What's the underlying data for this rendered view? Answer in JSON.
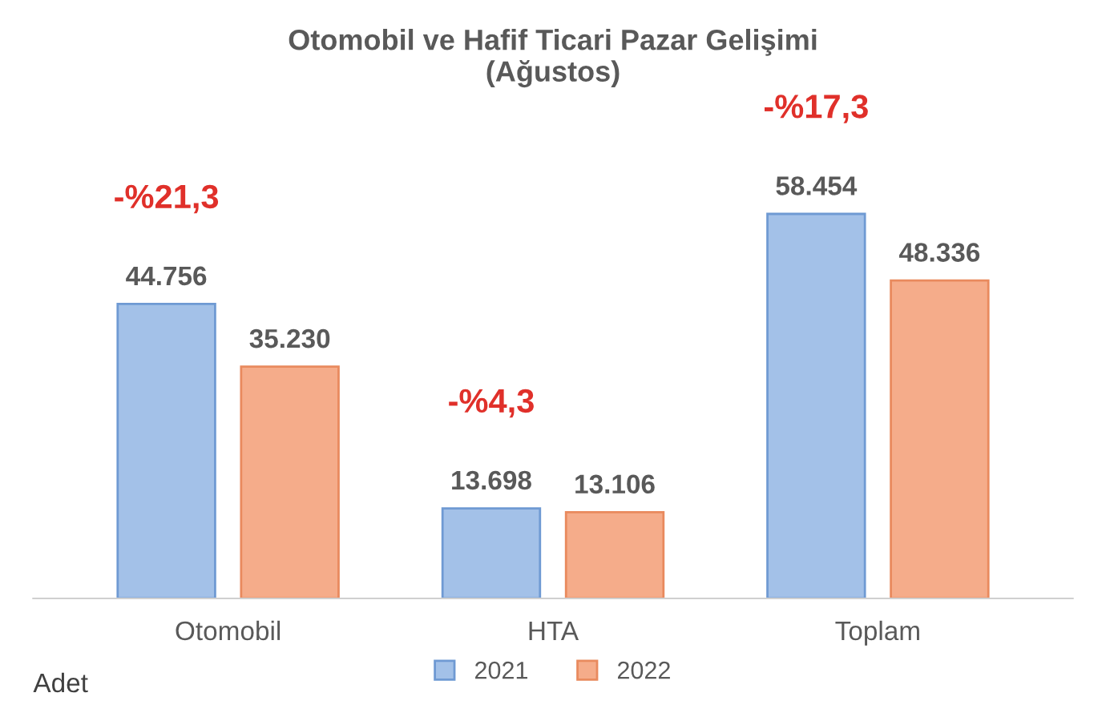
{
  "chart_data": {
    "type": "bar",
    "title": "Otomobil ve Hafif Ticari Pazar Gelişimi\n(Ağustos)",
    "categories": [
      "Otomobil",
      "HTA",
      "Toplam"
    ],
    "series": [
      {
        "name": "2021",
        "color": "#a3c1e8",
        "values": [
          44756,
          13698,
          58454
        ],
        "value_labels": [
          "44.756",
          "13.698",
          "58.454"
        ]
      },
      {
        "name": "2022",
        "color": "#f5ac8a",
        "values": [
          35230,
          13106,
          48336
        ],
        "value_labels": [
          "35.230",
          "13.106",
          "48.336"
        ]
      }
    ],
    "annotations": [
      "-%21,3",
      "-%4,3",
      "-%17,3",
      "Adet"
    ],
    "grid": false,
    "legend": "bottom"
  }
}
